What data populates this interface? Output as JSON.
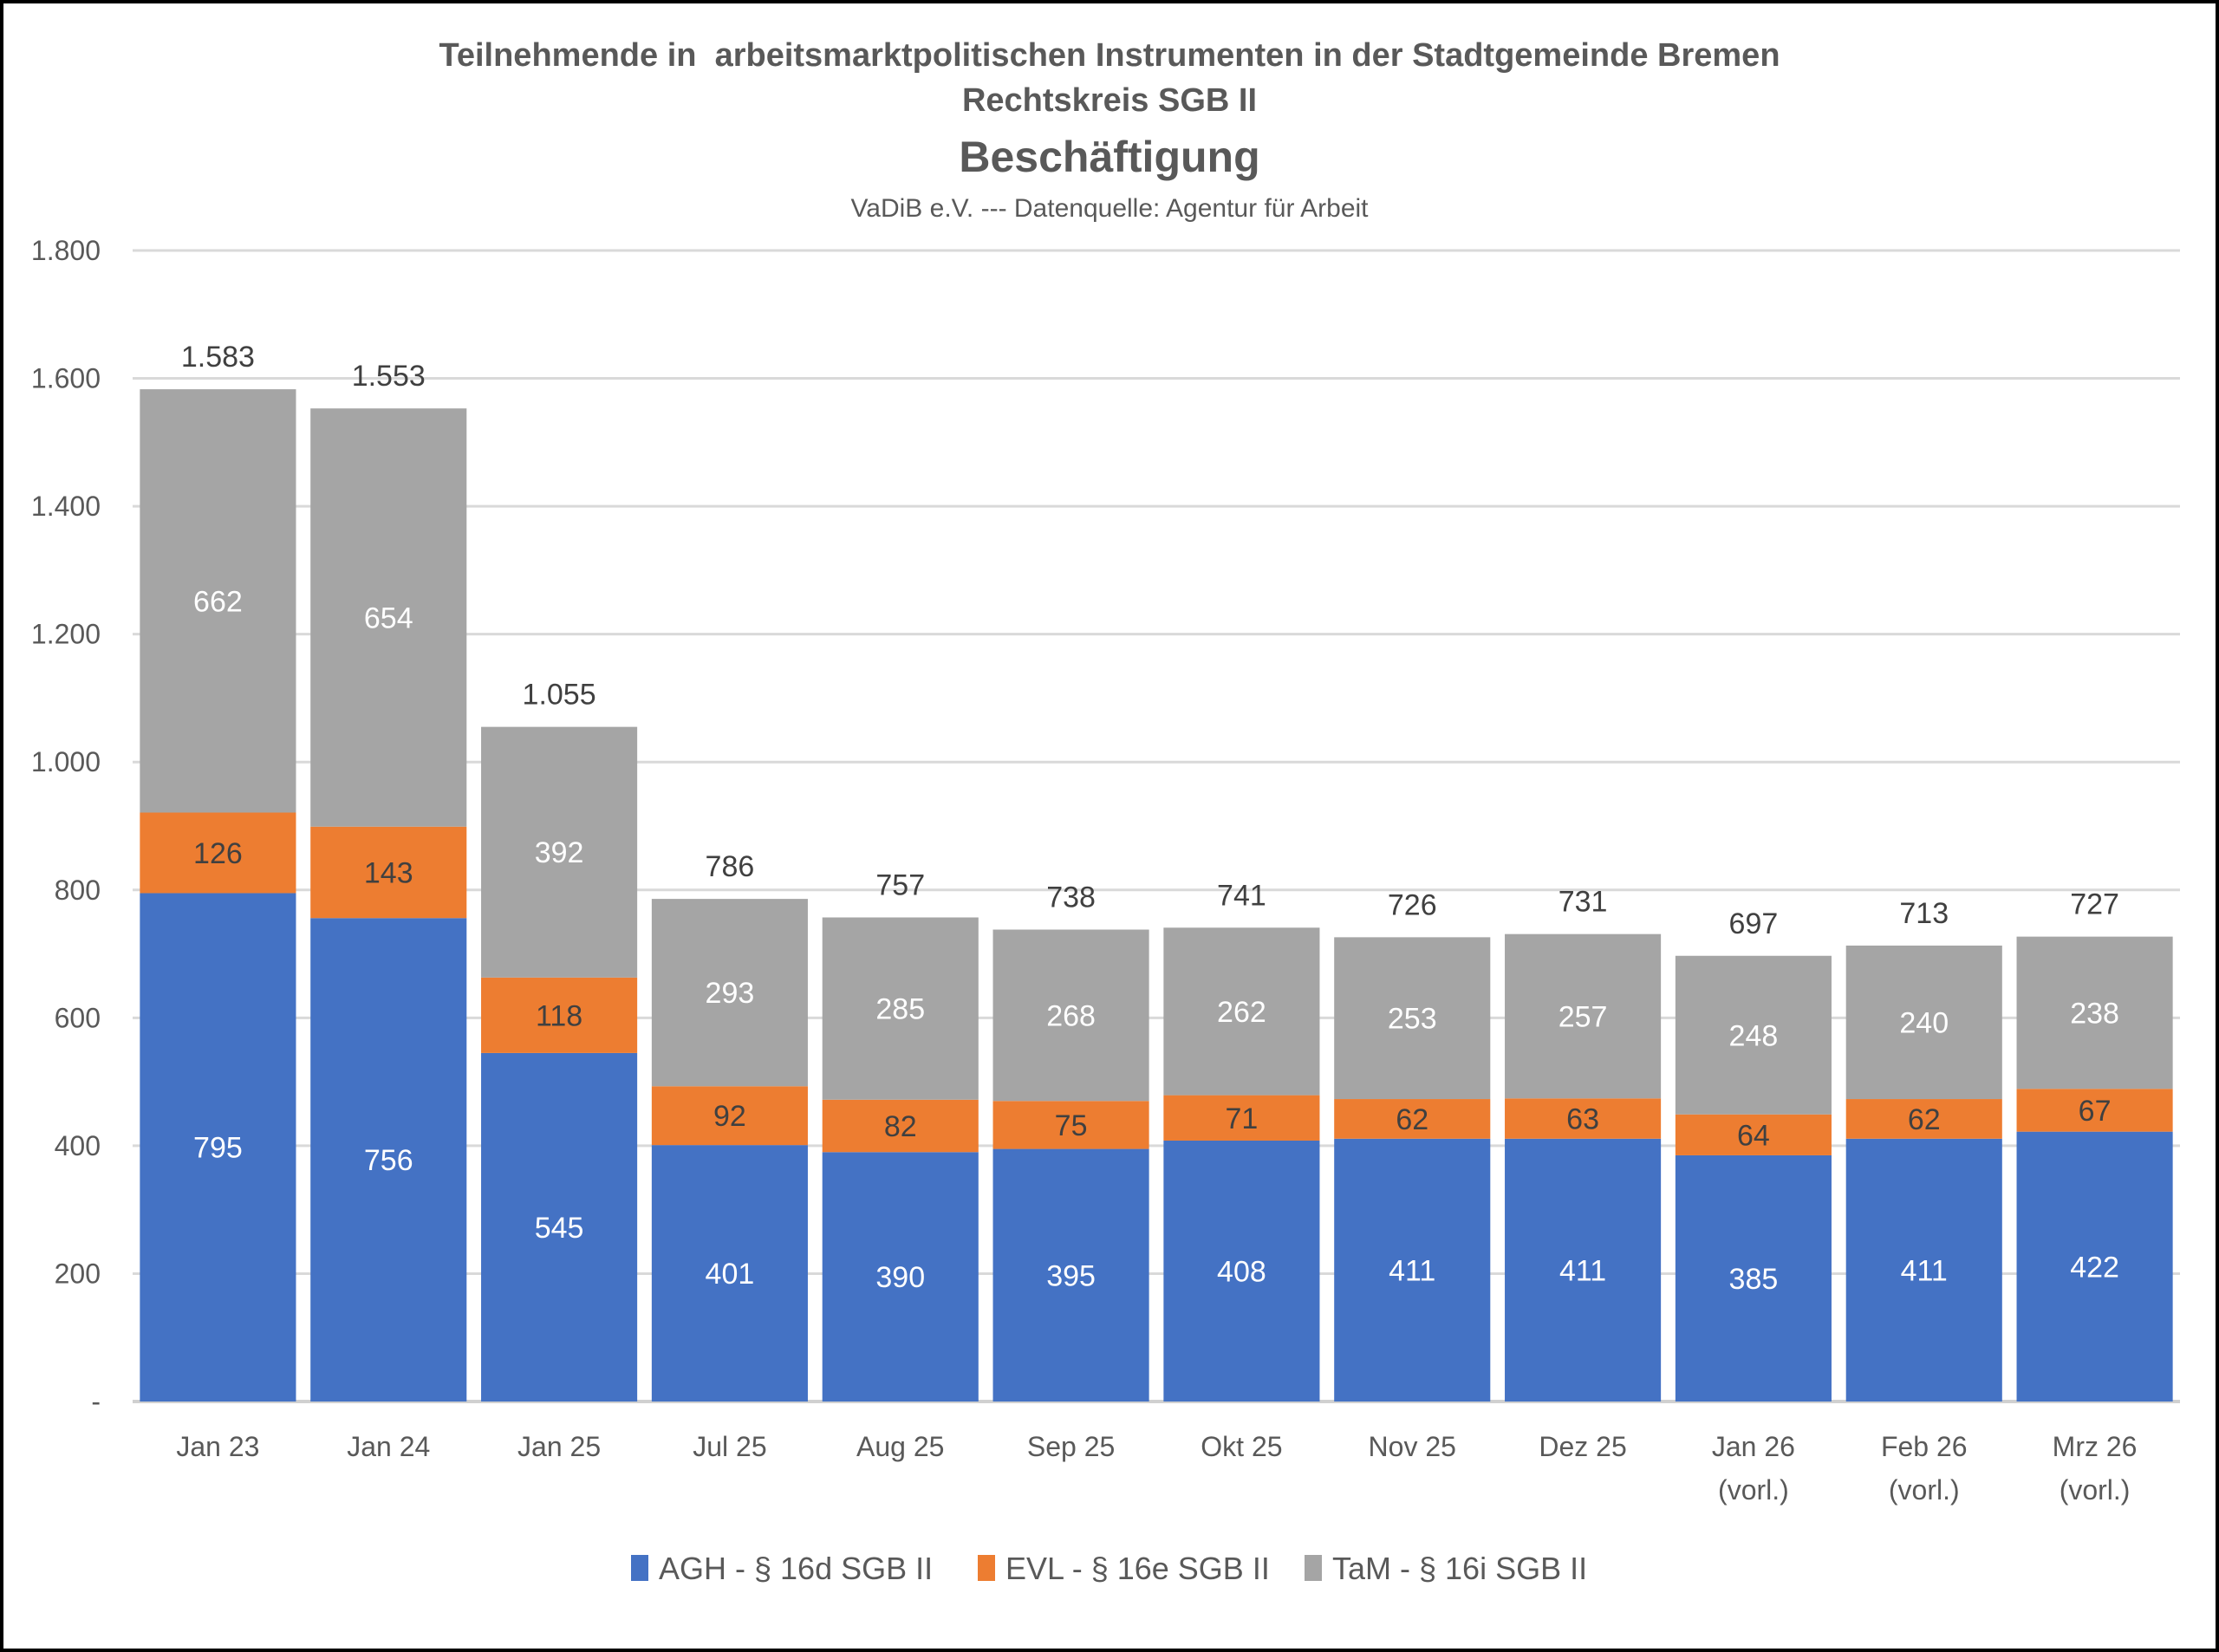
{
  "chart_data": {
    "type": "bar",
    "stacked": true,
    "title": "Teilnehmende in  arbeitsmarktpolitischen Instrumenten in der Stadtgemeinde Bremen",
    "subtitle_line2": "Rechtskreis SGB II",
    "subtitle_main": "Beschäftigung",
    "source": "VaDiB e.V. --- Datenquelle: Agentur für Arbeit",
    "xlabel": "",
    "ylabel": "",
    "ylim": [
      0,
      1800
    ],
    "yticks": [
      0,
      200,
      400,
      600,
      800,
      1000,
      1200,
      1400,
      1600,
      1800
    ],
    "ytick_labels": [
      "-",
      "200",
      "400",
      "600",
      "800",
      "1.000",
      "1.200",
      "1.400",
      "1.600",
      "1.800"
    ],
    "grid": true,
    "legend_position": "bottom",
    "categories": [
      [
        "Jan 23"
      ],
      [
        "Jan 24"
      ],
      [
        "Jan 25"
      ],
      [
        "Jul 25"
      ],
      [
        "Aug 25"
      ],
      [
        "Sep 25"
      ],
      [
        "Okt 25"
      ],
      [
        "Nov 25"
      ],
      [
        "Dez 25"
      ],
      [
        "Jan 26",
        "(vorl.)"
      ],
      [
        "Feb 26",
        "(vorl.)"
      ],
      [
        "Mrz 26",
        "(vorl.)"
      ]
    ],
    "series": [
      {
        "name": "AGH - § 16d SGB II",
        "color": "#4472C4",
        "label_color": "#FFFFFF",
        "values": [
          795,
          756,
          545,
          401,
          390,
          395,
          408,
          411,
          411,
          385,
          411,
          422
        ]
      },
      {
        "name": "EVL - § 16e SGB II",
        "color": "#ED7D31",
        "label_color": "#404040",
        "values": [
          126,
          143,
          118,
          92,
          82,
          75,
          71,
          62,
          63,
          64,
          62,
          67
        ]
      },
      {
        "name": "TaM - § 16i SGB II",
        "color": "#A5A5A5",
        "label_color": "#FFFFFF",
        "values": [
          662,
          654,
          392,
          293,
          285,
          268,
          262,
          253,
          257,
          248,
          240,
          238
        ]
      }
    ],
    "totals": [
      1583,
      1553,
      1055,
      786,
      757,
      738,
      741,
      726,
      731,
      697,
      713,
      727
    ],
    "total_labels": [
      "1.583",
      "1.553",
      "1.055",
      "786",
      "757",
      "738",
      "741",
      "726",
      "731",
      "697",
      "713",
      "727"
    ]
  }
}
